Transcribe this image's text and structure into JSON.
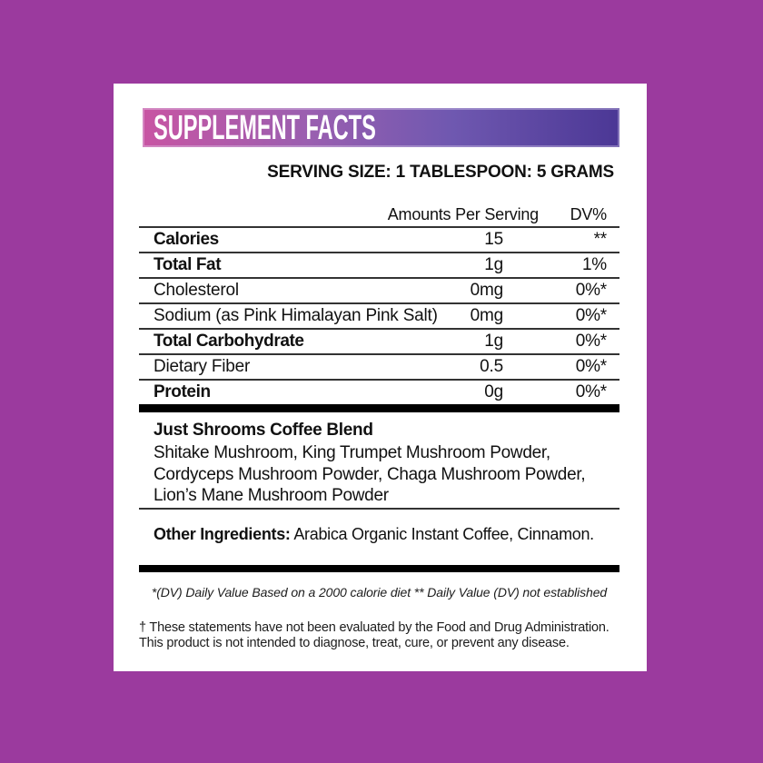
{
  "page": {
    "background_color": "#9b3a9e",
    "card_color": "#ffffff",
    "bar_color": "#000000"
  },
  "header": {
    "title": "SUPPLEMENT FACTS",
    "gradient_left": "#c855a3",
    "gradient_right": "#4b3795",
    "text_color": "#ffffff"
  },
  "serving": {
    "label": "SERVING SIZE: 1 TABLESPOON: 5 GRAMS"
  },
  "table": {
    "columns": {
      "amount": "Amounts Per Serving",
      "dv": "DV%"
    },
    "rows": [
      {
        "label": "Calories",
        "amount": "15",
        "dv": "**"
      },
      {
        "label": "Total Fat",
        "amount": "1g",
        "dv": "1%"
      },
      {
        "label": "Cholesterol",
        "amount": "0mg",
        "dv": "0%*"
      },
      {
        "label": "Sodium (as Pink Himalayan Pink Salt)",
        "amount": "0mg",
        "dv": "0%*"
      },
      {
        "label": "Total Carbohydrate",
        "amount": "1g",
        "dv": "0%*"
      },
      {
        "label": "Dietary Fiber",
        "amount": "0.5",
        "dv": "0%*"
      },
      {
        "label": "Protein",
        "amount": "0g",
        "dv": "0%*"
      }
    ]
  },
  "blend": {
    "title": "Just Shrooms Coffee Blend",
    "lines": [
      "Shitake Mushroom, King Trumpet Mushroom Powder,",
      "Cordyceps Mushroom Powder, Chaga Mushroom Powder,",
      "Lion’s Mane Mushroom Powder"
    ]
  },
  "other_ingredients": {
    "label": "Other Ingredients:",
    "value": " Arabica Organic Instant Coffee, Cinnamon."
  },
  "footnotes": {
    "dv_note": "*(DV) Daily Value Based on a 2000 calorie diet ** Daily Value (DV) not established",
    "fda_lines": [
      "† These statements have not been evaluated by the Food and Drug Administration.",
      "This product is not intended to diagnose, treat, cure, or prevent any disease."
    ]
  }
}
